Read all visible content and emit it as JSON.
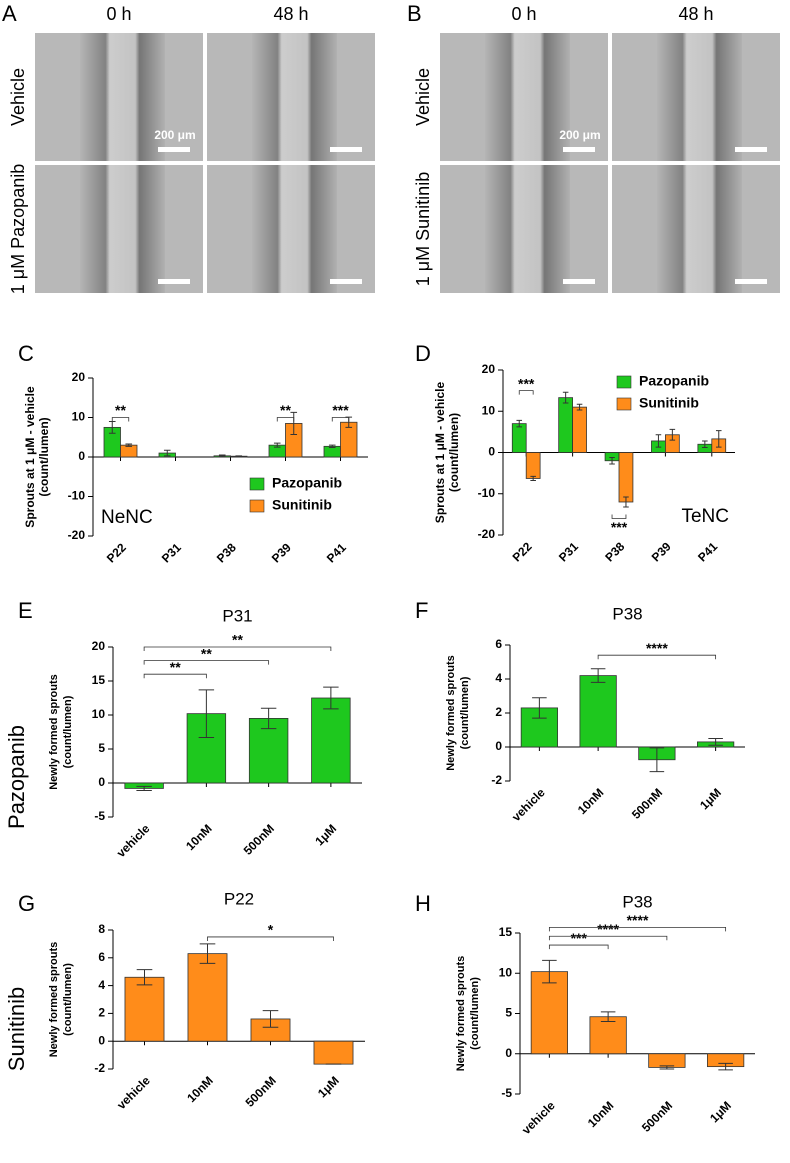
{
  "micrographs": [
    {
      "letter": "A",
      "columns": [
        "0 h",
        "48 h"
      ],
      "rows": [
        "Vehicle",
        "1 μM Pazopanib"
      ],
      "scale_bar": "200 μm"
    },
    {
      "letter": "B",
      "columns": [
        "0 h",
        "48 h"
      ],
      "rows": [
        "Vehicle",
        "1 μM Sunitinib"
      ],
      "scale_bar": "200 μm"
    }
  ],
  "chart_data": [
    {
      "type": "bar",
      "label": "C",
      "ylabel": [
        "Sprouts at 1 μM - vehicle",
        "(count/lumen)"
      ],
      "inset_label": "NeNC",
      "legend": "lower right",
      "categories": [
        "P22",
        "P31",
        "P38",
        "P39",
        "P41"
      ],
      "series": [
        {
          "name": "Pazopanib",
          "color": "#1ec81e",
          "values": [
            7.5,
            1,
            0.3,
            3,
            2.7
          ],
          "errors": [
            1.5,
            0.7,
            0.2,
            0.5,
            0.3
          ]
        },
        {
          "name": "Sunitinib",
          "color": "#ff8c1a",
          "values": [
            3,
            null,
            0.2,
            8.5,
            8.8
          ],
          "errors": [
            0.3,
            null,
            0.1,
            2.8,
            1.3
          ]
        }
      ],
      "annotations": [
        "**",
        "**",
        "***"
      ],
      "ylim": [
        -20,
        20
      ],
      "yticks": [
        -20,
        -10,
        0,
        10,
        20
      ]
    },
    {
      "type": "bar",
      "label": "D",
      "ylabel": [
        "Sprouts at 1 μM - vehicle",
        "(count/lumen)"
      ],
      "inset_label": "TeNC",
      "legend": "upper right",
      "categories": [
        "P22",
        "P31",
        "P38",
        "P39",
        "P41"
      ],
      "series": [
        {
          "name": "Pazopanib",
          "color": "#1ec81e",
          "values": [
            7,
            13.3,
            -2,
            2.8,
            2
          ],
          "errors": [
            0.8,
            1.3,
            0.8,
            1.5,
            0.8
          ]
        },
        {
          "name": "Sunitinib",
          "color": "#ff8c1a",
          "values": [
            -6.3,
            11,
            -12,
            4.3,
            3.3
          ],
          "errors": [
            0.5,
            0.7,
            1.2,
            1.3,
            2
          ]
        }
      ],
      "annotations": [
        "***",
        "***"
      ],
      "ylim": [
        -20,
        20
      ],
      "yticks": [
        -20,
        -10,
        0,
        10,
        20
      ]
    },
    {
      "type": "bar",
      "label": "E",
      "title": "P31",
      "row_label": "Pazopanib",
      "ylabel": [
        "Newly formed sprouts",
        "(count/lumen)"
      ],
      "categories": [
        "vehicle",
        "10nM",
        "500nM",
        "1μM"
      ],
      "series": [
        {
          "color": "#1ec81e",
          "values": [
            -0.8,
            10.2,
            9.5,
            12.5
          ],
          "errors": [
            0.3,
            3.5,
            1.5,
            1.6
          ]
        }
      ],
      "annotations": [
        "**",
        "**",
        "**"
      ],
      "ylim": [
        -5,
        20
      ],
      "yticks": [
        -5,
        0,
        5,
        10,
        15,
        20
      ]
    },
    {
      "type": "bar",
      "label": "F",
      "title": "P38",
      "ylabel": [
        "Newly formed sprouts",
        "(count/lumen)"
      ],
      "categories": [
        "vehicle",
        "10nM",
        "500nM",
        "1μM"
      ],
      "series": [
        {
          "color": "#1ec81e",
          "values": [
            2.3,
            4.2,
            -0.75,
            0.3
          ],
          "errors": [
            0.6,
            0.4,
            0.7,
            0.2
          ]
        }
      ],
      "annotations": [
        "****"
      ],
      "ylim": [
        -2,
        6
      ],
      "yticks": [
        -2,
        0,
        2,
        4,
        6
      ]
    },
    {
      "type": "bar",
      "label": "G",
      "title": "P22",
      "row_label": "Sunitinib",
      "ylabel": [
        "Newly formed sprouts",
        "(count/lumen)"
      ],
      "categories": [
        "vehicle",
        "10nM",
        "500nM",
        "1μM"
      ],
      "series": [
        {
          "color": "#ff8c1a",
          "values": [
            4.6,
            6.3,
            1.6,
            -1.65
          ],
          "errors": [
            0.55,
            0.7,
            0.6,
            0
          ]
        }
      ],
      "annotations": [
        "*"
      ],
      "ylim": [
        -2,
        8
      ],
      "yticks": [
        -2,
        0,
        2,
        4,
        6,
        8
      ]
    },
    {
      "type": "bar",
      "label": "H",
      "title": "P38",
      "ylabel": [
        "Newly formed sprouts",
        "(count/lumen)"
      ],
      "categories": [
        "vehicle",
        "10nM",
        "500nM",
        "1μM"
      ],
      "series": [
        {
          "color": "#ff8c1a",
          "values": [
            10.2,
            4.6,
            -1.7,
            -1.6
          ],
          "errors": [
            1.4,
            0.6,
            0.2,
            0.4
          ]
        }
      ],
      "annotations": [
        "***",
        "****",
        "****"
      ],
      "ylim": [
        -5,
        15
      ],
      "yticks": [
        -5,
        0,
        5,
        10,
        15
      ]
    }
  ]
}
